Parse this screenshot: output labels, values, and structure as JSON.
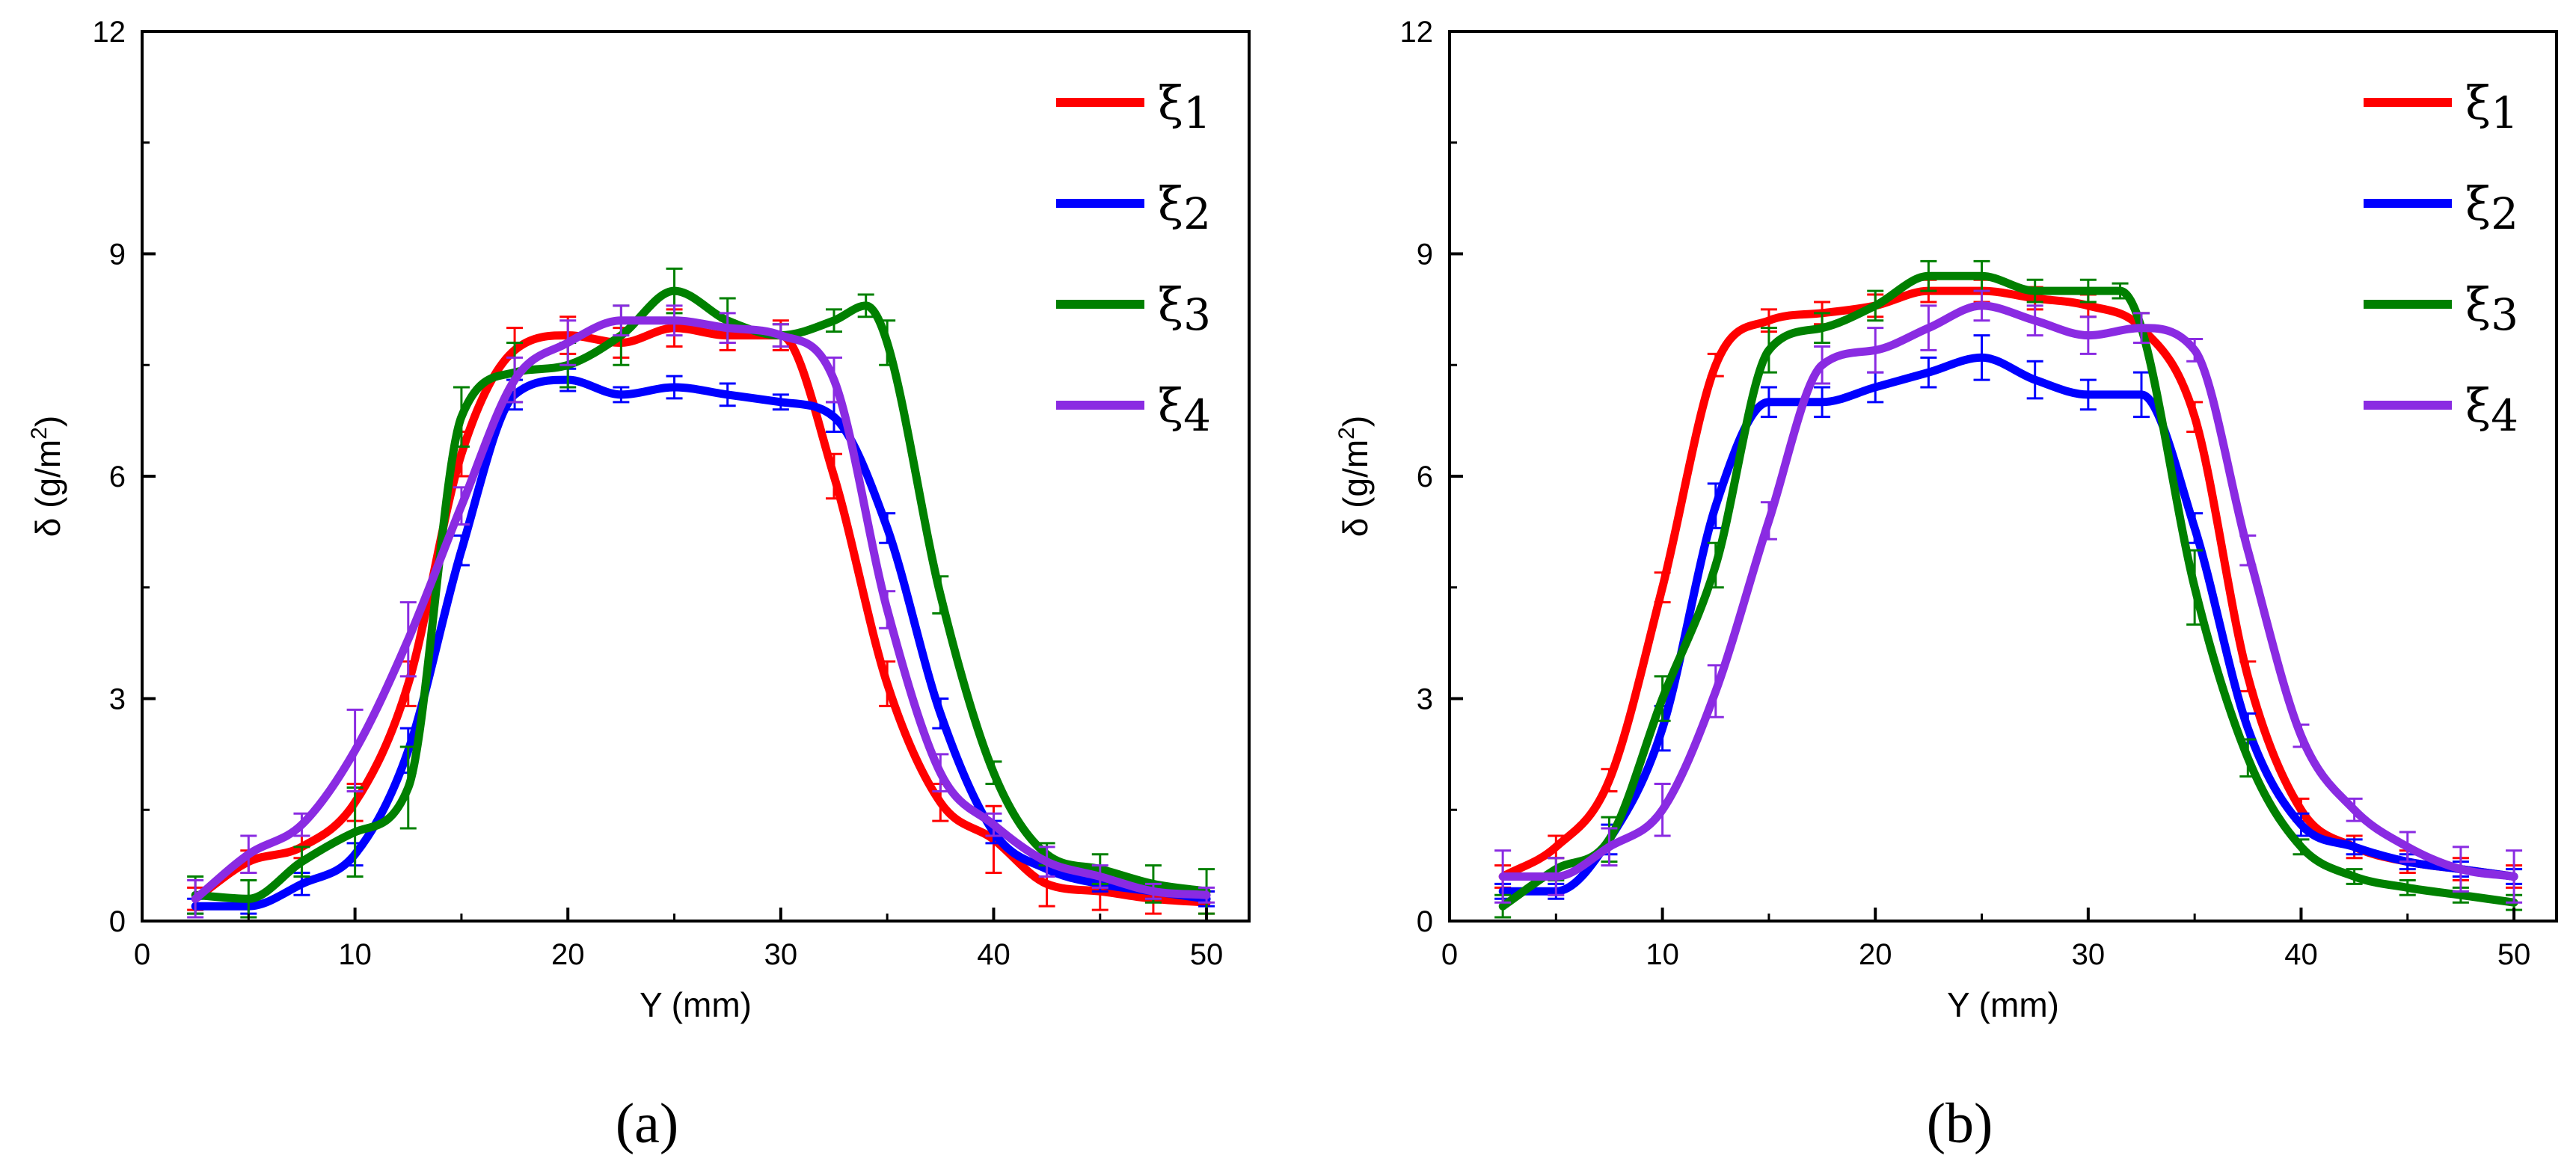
{
  "chart_data": [
    {
      "type": "line",
      "caption": "(a)",
      "xlabel": "Y (mm)",
      "ylabel_main": "δ (g/m",
      "ylabel_sup": "2",
      "ylabel_close": ")",
      "xlim": [
        0,
        52
      ],
      "ylim": [
        0,
        12
      ],
      "xticks": [
        0,
        10,
        20,
        30,
        40,
        50
      ],
      "yticks": [
        0,
        3,
        6,
        9,
        12
      ],
      "grid": false,
      "legend_position": "top-right",
      "series": [
        {
          "name": "ξ1",
          "base": "ξ",
          "sub": "1",
          "color": "#ff0000",
          "x": [
            2.5,
            5,
            7.5,
            10,
            12.5,
            15,
            17.5,
            20,
            22.5,
            25,
            27.5,
            30,
            32.5,
            35,
            37.5,
            40,
            42.5,
            45,
            47.5,
            50
          ],
          "y": [
            0.3,
            0.8,
            1.0,
            1.6,
            3.2,
            6.3,
            7.7,
            7.9,
            7.8,
            8.0,
            7.9,
            7.9,
            6.0,
            3.2,
            1.6,
            1.1,
            0.5,
            0.4,
            0.3,
            0.25
          ],
          "err": [
            0.15,
            0.15,
            0.15,
            0.25,
            0.3,
            0.3,
            0.3,
            0.25,
            0.2,
            0.25,
            0.2,
            0.2,
            0.3,
            0.3,
            0.25,
            0.45,
            0.3,
            0.25,
            0.2,
            0.15
          ]
        },
        {
          "name": "ξ2",
          "base": "ξ",
          "sub": "2",
          "color": "#0000ff",
          "x": [
            2.5,
            5,
            7.5,
            10,
            12.5,
            15,
            17.5,
            20,
            22.5,
            25,
            27.5,
            30,
            32.5,
            35,
            37.5,
            40,
            42.5,
            45,
            47.5,
            50
          ],
          "y": [
            0.2,
            0.2,
            0.5,
            0.9,
            2.3,
            5.0,
            7.1,
            7.3,
            7.1,
            7.2,
            7.1,
            7.0,
            6.8,
            5.3,
            2.8,
            1.2,
            0.7,
            0.5,
            0.4,
            0.3
          ],
          "err": [
            0.1,
            0.1,
            0.15,
            0.15,
            0.3,
            0.2,
            0.2,
            0.15,
            0.1,
            0.15,
            0.15,
            0.1,
            0.2,
            0.2,
            0.2,
            0.15,
            0.1,
            0.1,
            0.1,
            0.1
          ]
        },
        {
          "name": "ξ3",
          "base": "ξ",
          "sub": "3",
          "color": "#008000",
          "x": [
            2.5,
            5,
            7.5,
            10,
            12.5,
            15,
            17.5,
            20,
            22.5,
            25,
            27.5,
            30,
            32.5,
            34,
            35,
            37.5,
            40,
            42.5,
            45,
            47.5,
            50
          ],
          "y": [
            0.35,
            0.3,
            0.8,
            1.2,
            1.8,
            6.8,
            7.4,
            7.5,
            7.9,
            8.5,
            8.1,
            7.9,
            8.1,
            8.3,
            7.8,
            4.4,
            2.0,
            0.9,
            0.7,
            0.5,
            0.4
          ],
          "err": [
            0.25,
            0.25,
            0.2,
            0.6,
            0.55,
            0.4,
            0.4,
            0.3,
            0.4,
            0.3,
            0.3,
            0.15,
            0.15,
            0.15,
            0.3,
            0.25,
            0.15,
            0.15,
            0.2,
            0.25,
            0.3
          ]
        },
        {
          "name": "ξ4",
          "base": "ξ",
          "sub": "4",
          "color": "#8a2be2",
          "x": [
            2.5,
            5,
            7.5,
            10,
            12.5,
            15,
            17.5,
            20,
            22.5,
            25,
            27.5,
            30,
            32.5,
            35,
            37.5,
            40,
            42.5,
            45,
            47.5,
            50
          ],
          "y": [
            0.3,
            0.9,
            1.3,
            2.3,
            3.8,
            5.6,
            7.3,
            7.8,
            8.1,
            8.1,
            8.0,
            7.9,
            7.3,
            4.2,
            2.0,
            1.3,
            0.8,
            0.6,
            0.4,
            0.35
          ],
          "err": [
            0.25,
            0.25,
            0.15,
            0.55,
            0.5,
            0.25,
            0.3,
            0.3,
            0.2,
            0.2,
            0.2,
            0.15,
            0.3,
            0.25,
            0.25,
            0.15,
            0.2,
            0.15,
            0.1,
            0.1
          ]
        }
      ]
    },
    {
      "type": "line",
      "caption": "(b)",
      "xlabel": "Y (mm)",
      "ylabel_main": "δ (g/m",
      "ylabel_sup": "2",
      "ylabel_close": ")",
      "xlim": [
        0,
        52
      ],
      "ylim": [
        0,
        12
      ],
      "xticks": [
        0,
        10,
        20,
        30,
        40,
        50
      ],
      "yticks": [
        0,
        3,
        6,
        9,
        12
      ],
      "grid": false,
      "legend_position": "top-right",
      "series": [
        {
          "name": "ξ1",
          "base": "ξ",
          "sub": "1",
          "color": "#ff0000",
          "x": [
            2.5,
            5,
            7.5,
            10,
            12.5,
            15,
            17.5,
            20,
            22.5,
            25,
            27.5,
            30,
            32.5,
            35,
            37.5,
            40,
            42.5,
            45,
            47.5,
            50
          ],
          "y": [
            0.6,
            1.0,
            1.9,
            4.5,
            7.5,
            8.1,
            8.2,
            8.3,
            8.5,
            8.5,
            8.4,
            8.3,
            8.0,
            6.8,
            3.3,
            1.5,
            1.0,
            0.8,
            0.7,
            0.6
          ],
          "err": [
            0.15,
            0.15,
            0.15,
            0.2,
            0.15,
            0.15,
            0.15,
            0.15,
            0.15,
            0.15,
            0.15,
            0.15,
            0.2,
            0.2,
            0.2,
            0.15,
            0.15,
            0.15,
            0.15,
            0.15
          ]
        },
        {
          "name": "ξ2",
          "base": "ξ",
          "sub": "2",
          "color": "#0000ff",
          "x": [
            2.5,
            5,
            7.5,
            10,
            12.5,
            15,
            17.5,
            20,
            22.5,
            25,
            27.5,
            30,
            32.5,
            35,
            37.5,
            40,
            42.5,
            45,
            47.5,
            50
          ],
          "y": [
            0.4,
            0.4,
            1.1,
            2.6,
            5.6,
            7.0,
            7.0,
            7.2,
            7.4,
            7.6,
            7.3,
            7.1,
            7.1,
            5.3,
            2.6,
            1.3,
            1.0,
            0.8,
            0.7,
            0.6
          ],
          "err": [
            0.1,
            0.1,
            0.2,
            0.3,
            0.3,
            0.2,
            0.2,
            0.2,
            0.2,
            0.3,
            0.25,
            0.2,
            0.3,
            0.2,
            0.2,
            0.15,
            0.1,
            0.1,
            0.1,
            0.1
          ]
        },
        {
          "name": "ξ3",
          "base": "ξ",
          "sub": "3",
          "color": "#008000",
          "x": [
            2.5,
            5,
            7.5,
            10,
            12.5,
            15,
            17.5,
            20,
            22.5,
            25,
            27.5,
            30,
            31.5,
            32.5,
            35,
            37.5,
            40,
            42.5,
            45,
            47.5,
            50
          ],
          "y": [
            0.2,
            0.7,
            1.1,
            3.0,
            4.8,
            7.7,
            8.0,
            8.3,
            8.7,
            8.7,
            8.5,
            8.5,
            8.5,
            8.0,
            4.5,
            2.2,
            1.0,
            0.6,
            0.45,
            0.35,
            0.25
          ],
          "err": [
            0.15,
            0.15,
            0.3,
            0.3,
            0.3,
            0.3,
            0.2,
            0.2,
            0.2,
            0.2,
            0.15,
            0.15,
            0.1,
            0.2,
            0.5,
            0.25,
            0.1,
            0.1,
            0.1,
            0.1,
            0.1
          ]
        },
        {
          "name": "ξ4",
          "base": "ξ",
          "sub": "4",
          "color": "#8a2be2",
          "x": [
            2.5,
            5,
            7.5,
            10,
            12.5,
            15,
            17.5,
            20,
            22.5,
            25,
            27.5,
            30,
            32.5,
            35,
            37.5,
            40,
            42.5,
            45,
            47.5,
            50
          ],
          "y": [
            0.6,
            0.6,
            1.0,
            1.5,
            3.1,
            5.4,
            7.5,
            7.7,
            8.0,
            8.3,
            8.1,
            7.9,
            8.0,
            7.7,
            5.0,
            2.5,
            1.5,
            1.0,
            0.7,
            0.6
          ],
          "err": [
            0.35,
            0.25,
            0.25,
            0.35,
            0.35,
            0.25,
            0.25,
            0.3,
            0.3,
            0.2,
            0.2,
            0.25,
            0.2,
            0.15,
            0.2,
            0.15,
            0.15,
            0.2,
            0.3,
            0.35
          ]
        }
      ]
    }
  ]
}
